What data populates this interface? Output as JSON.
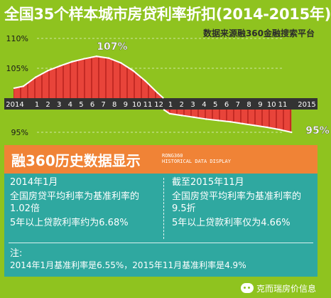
{
  "title": "全国35个样本城市房贷利率折扣(2014-2015年)",
  "source_note": "数据来源融360金融搜索平台",
  "chart_data": {
    "type": "area",
    "x_labels": [
      "2014",
      "1",
      "2",
      "3",
      "4",
      "5",
      "6",
      "7",
      "8",
      "9",
      "10",
      "11",
      "12",
      "1",
      "2",
      "3",
      "4",
      "5",
      "6",
      "7",
      "8",
      "9",
      "10",
      "11",
      "2015"
    ],
    "y_ticks": [
      "110%",
      "105%",
      "95%"
    ],
    "ylim": [
      93,
      112
    ],
    "baseline": 100,
    "x": [
      "2014-01",
      "2014-02",
      "2014-03",
      "2014-04",
      "2014-05",
      "2014-06",
      "2014-07",
      "2014-08",
      "2014-09",
      "2014-10",
      "2014-11",
      "2014-12",
      "2015-01",
      "2015-02",
      "2015-03",
      "2015-04",
      "2015-05",
      "2015-06",
      "2015-07",
      "2015-08",
      "2015-09",
      "2015-10",
      "2015-11"
    ],
    "values": [
      102,
      103.5,
      104.6,
      105.4,
      106.1,
      106.6,
      107,
      106.7,
      105.9,
      104.6,
      102.9,
      100.9,
      99.1,
      98.7,
      98.3,
      97.9,
      97.6,
      97.3,
      96.9,
      96.5,
      96.1,
      95.6,
      95
    ],
    "annotations": [
      "107%",
      "95%"
    ],
    "colors": {
      "area": "#e8443a",
      "area_stripe": "#c42a24",
      "axis_band": "#333333",
      "curve": "#ffffff"
    }
  },
  "panel": {
    "header_cn": "融360历史数据显示",
    "header_en_1": "RONG360",
    "header_en_2": "HISTORICAL DATA DISPLAY",
    "left": {
      "date": "2014年1月",
      "line1": "全国房贷平均利率为基准利率的1.02倍",
      "line2": "5年以上贷款利率约为6.68%"
    },
    "right": {
      "date": "截至2015年11月",
      "line1": "全国房贷平均利率为基准利率的9.5折",
      "line2": "5年以上贷款利率仅为4.66%"
    },
    "note_head": "注:",
    "note_text": "2014年1月基准利率是6.55%，2015年11月基准利率是4.9%"
  },
  "watermark": "克而瑞房价信息"
}
